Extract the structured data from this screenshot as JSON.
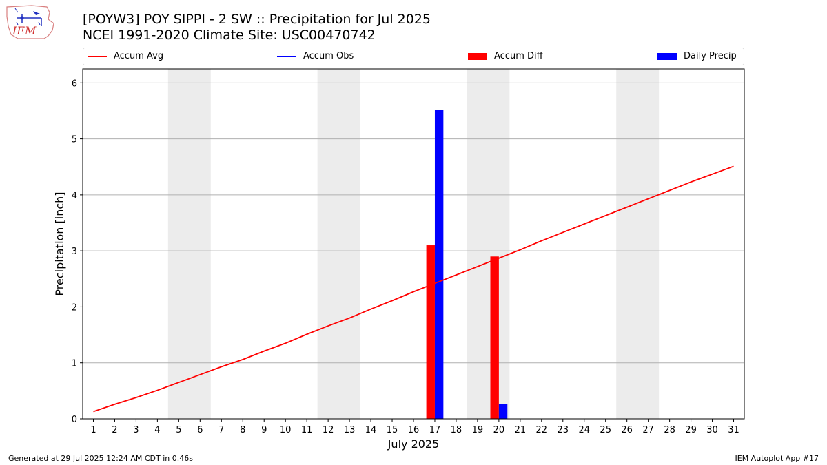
{
  "header": {
    "title_line1": "[POYW3] POY SIPPI - 2 SW :: Precipitation for Jul 2025",
    "title_line2": "NCEI 1991-2020 Climate Site: USC00470742",
    "logo_text": "IEM"
  },
  "footer": {
    "left": "Generated at 29 Jul 2025 12:24 AM CDT in 0.46s",
    "right": "IEM Autoplot App #17"
  },
  "legend": {
    "placement": "top, spanning plot width",
    "items": [
      {
        "label": "Accum Avg",
        "kind": "line",
        "color": "#ff0000"
      },
      {
        "label": "Accum Obs",
        "kind": "line",
        "color": "#0000ff"
      },
      {
        "label": "Accum Diff",
        "kind": "bar",
        "color": "#ff0000"
      },
      {
        "label": "Daily Precip",
        "kind": "bar",
        "color": "#0000ff"
      }
    ]
  },
  "chart_data": {
    "type": "bar",
    "xlabel": "July 2025",
    "ylabel": "Precipitation [inch]",
    "xlim": [
      0.5,
      31.5
    ],
    "ylim": [
      0,
      6.25
    ],
    "yticks": [
      0,
      1,
      2,
      3,
      4,
      5,
      6
    ],
    "xticks": [
      1,
      2,
      3,
      4,
      5,
      6,
      7,
      8,
      9,
      10,
      11,
      12,
      13,
      14,
      15,
      16,
      17,
      18,
      19,
      20,
      21,
      22,
      23,
      24,
      25,
      26,
      27,
      28,
      29,
      30,
      31
    ],
    "grid": "horizontal",
    "weekend_shading": [
      [
        4.5,
        6.5
      ],
      [
        11.5,
        13.5
      ],
      [
        18.5,
        20.5
      ],
      [
        25.5,
        27.5
      ]
    ],
    "shade_color": "#ececec",
    "accum_avg": {
      "name": "Accum Avg",
      "color": "#ff0000",
      "x": [
        1,
        2,
        3,
        4,
        5,
        6,
        7,
        8,
        9,
        10,
        11,
        12,
        13,
        14,
        15,
        16,
        17,
        18,
        19,
        20,
        21,
        22,
        23,
        24,
        25,
        26,
        27,
        28,
        29,
        30,
        31
      ],
      "values": [
        0.13,
        0.26,
        0.38,
        0.51,
        0.65,
        0.79,
        0.93,
        1.06,
        1.21,
        1.35,
        1.51,
        1.66,
        1.8,
        1.96,
        2.11,
        2.27,
        2.42,
        2.57,
        2.72,
        2.87,
        3.02,
        3.18,
        3.33,
        3.48,
        3.63,
        3.78,
        3.93,
        4.08,
        4.23,
        4.37,
        4.51
      ]
    },
    "accum_diff": {
      "name": "Accum Diff",
      "color": "#ff0000",
      "x": [
        17,
        20
      ],
      "values": [
        3.1,
        2.9
      ]
    },
    "daily_precip": {
      "name": "Daily Precip",
      "color": "#0000ff",
      "x": [
        17,
        20
      ],
      "values": [
        5.52,
        0.26
      ]
    }
  }
}
